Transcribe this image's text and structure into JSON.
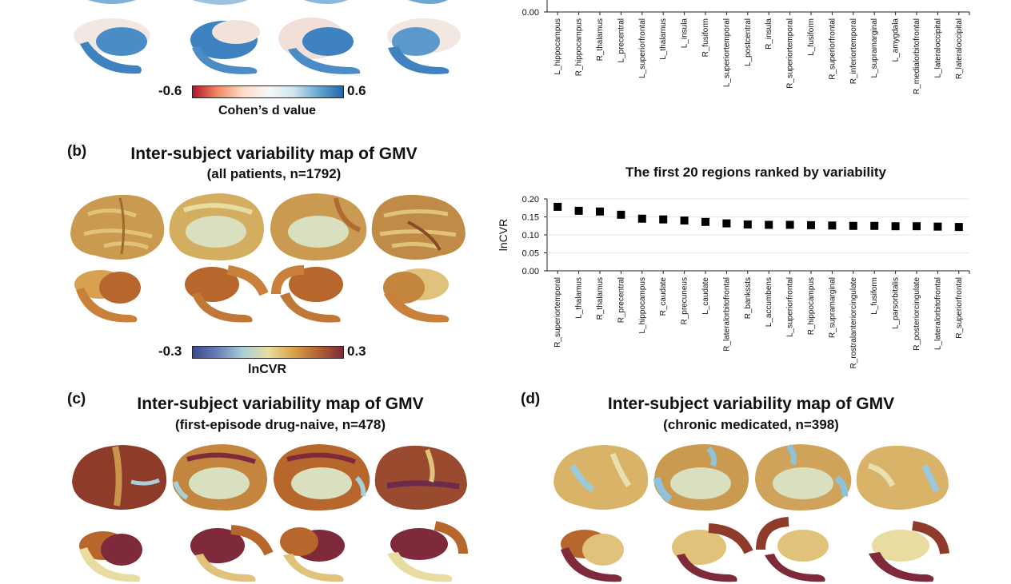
{
  "panel_a": {
    "colorbar": {
      "min_label": "-0.6",
      "max_label": "0.6",
      "title": "Cohen’s d value",
      "colors": [
        "#b2182b",
        "#ef8a62",
        "#fddbc7",
        "#f7f7f7",
        "#d1e5f0",
        "#67a9cf",
        "#2166ac"
      ]
    }
  },
  "panel_b": {
    "letter": "(b)",
    "title": "Inter-subject variability map of GMV",
    "subtitle": "(all patients, n=1792)",
    "colorbar": {
      "min_label": "-0.3",
      "max_label": "0.3",
      "title": "lnCVR",
      "colors": [
        "#3b4a8c",
        "#6a7fb8",
        "#a9cfd8",
        "#e7e0a0",
        "#d9a24a",
        "#b5622e",
        "#7e2a3a"
      ]
    }
  },
  "panel_c": {
    "letter": "(c)",
    "title": "Inter-subject variability map of GMV",
    "subtitle": "(first-episode drug-naive, n=478)"
  },
  "panel_d": {
    "letter": "(d)",
    "title": "Inter-subject variability map of GMV",
    "subtitle": "(chronic medicated, n=398)"
  },
  "chart_data": [
    {
      "type": "scatter",
      "title": "",
      "ylabel": "",
      "ylim": [
        0,
        0.2
      ],
      "yticks": [
        "0.00"
      ],
      "categories": [
        "L_hippocampus",
        "R_hippocampus",
        "R_thalamus",
        "L_precentral",
        "L_superiorfrontal",
        "L_thalamus",
        "L_insula",
        "R_fusiform",
        "L_superiortemporal",
        "L_postcentral",
        "R_insula",
        "R_superiortemporal",
        "L_fusiform",
        "R_superiorfrontal",
        "R_inferiortemporal",
        "L_supramarginal",
        "L_amygdala",
        "R_medialorbitofrontal",
        "L_lateraloccipital",
        "R_lateraloccipital"
      ]
    },
    {
      "type": "scatter",
      "title": "The first 20 regions ranked by variability",
      "ylabel": "lnCVR",
      "ylim": [
        0,
        0.2
      ],
      "yticks": [
        "0.00",
        "0.05",
        "0.10",
        "0.15",
        "0.20"
      ],
      "grid": true,
      "categories": [
        "R_superiortemporal",
        "L_thalamus",
        "R_thalamus",
        "R_precentral",
        "L_hippocampus",
        "R_caudate",
        "R_precuneus",
        "L_caudate",
        "R_lateralorbitofrontal",
        "R_bankssts",
        "L_accumbens",
        "L_superiorfrontal",
        "R_hippocampus",
        "R_supramarginal",
        "R_rostralanteriorcingulate",
        "L_fusiform",
        "L_parsorbitalis",
        "R_posteriorcingulate",
        "L_lateralorbitofrontal",
        "R_superiorfrontal"
      ],
      "values": [
        0.178,
        0.167,
        0.165,
        0.156,
        0.145,
        0.143,
        0.14,
        0.136,
        0.132,
        0.129,
        0.128,
        0.128,
        0.127,
        0.126,
        0.125,
        0.125,
        0.124,
        0.124,
        0.123,
        0.122
      ]
    }
  ]
}
